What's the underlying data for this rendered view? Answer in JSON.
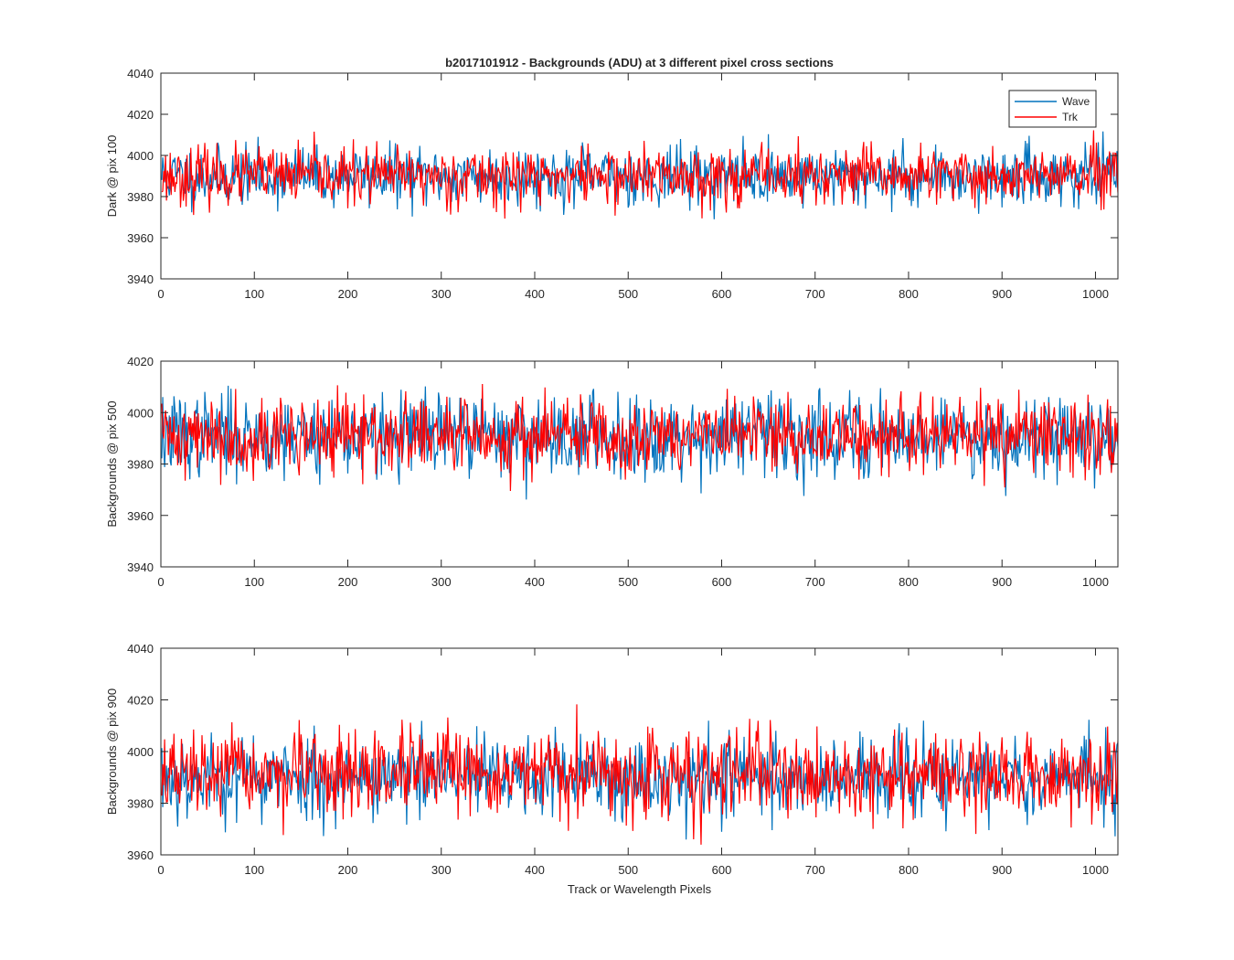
{
  "chart_data": [
    {
      "type": "line",
      "title": "b2017101912 - Backgrounds (ADU) at 3 different pixel cross sections",
      "xlabel": "",
      "ylabel": "Dark @ pix 100",
      "xlim": [
        0,
        1024
      ],
      "ylim": [
        3940,
        4040
      ],
      "xticks": [
        0,
        100,
        200,
        300,
        400,
        500,
        600,
        700,
        800,
        900,
        1000
      ],
      "yticks": [
        3940,
        3960,
        3980,
        4000,
        4020,
        4040
      ],
      "n_points": 1024,
      "legend": {
        "placement": "top-right",
        "entries": [
          "Wave",
          "Trk"
        ]
      },
      "series": [
        {
          "name": "Wave",
          "color": "#0072BD",
          "center": 3990,
          "spread": 7,
          "min": 3965,
          "max": 4023,
          "seed": 11
        },
        {
          "name": "Trk",
          "color": "#FF0000",
          "center": 3990,
          "spread": 7,
          "min": 3960,
          "max": 4017,
          "seed": 23
        }
      ]
    },
    {
      "type": "line",
      "title": "",
      "xlabel": "",
      "ylabel": "Backgrounds @ pix 500",
      "xlim": [
        0,
        1024
      ],
      "ylim": [
        3940,
        4020
      ],
      "xticks": [
        0,
        100,
        200,
        300,
        400,
        500,
        600,
        700,
        800,
        900,
        1000
      ],
      "yticks": [
        3940,
        3960,
        3980,
        4000,
        4020
      ],
      "n_points": 1024,
      "series": [
        {
          "name": "Wave",
          "color": "#0072BD",
          "center": 3991,
          "spread": 8,
          "min": 3955,
          "max": 4016,
          "seed": 37
        },
        {
          "name": "Trk",
          "color": "#FF0000",
          "center": 3991,
          "spread": 7.5,
          "min": 3964,
          "max": 4019,
          "seed": 41
        }
      ]
    },
    {
      "type": "line",
      "title": "",
      "xlabel": "Track or Wavelength Pixels",
      "ylabel": "Backgrounds @ pix 900",
      "xlim": [
        0,
        1024
      ],
      "ylim": [
        3960,
        4040
      ],
      "xticks": [
        0,
        100,
        200,
        300,
        400,
        500,
        600,
        700,
        800,
        900,
        1000
      ],
      "yticks": [
        3960,
        3980,
        4000,
        4020,
        4040
      ],
      "n_points": 1024,
      "series": [
        {
          "name": "Wave",
          "color": "#0072BD",
          "center": 3990,
          "spread": 8,
          "min": 3964,
          "max": 4019,
          "seed": 53
        },
        {
          "name": "Trk",
          "color": "#FF0000",
          "center": 3991,
          "spread": 8,
          "min": 3963,
          "max": 4028,
          "seed": 67
        }
      ]
    }
  ]
}
